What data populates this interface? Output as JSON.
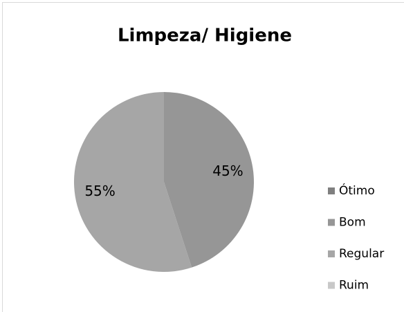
{
  "chart_data": {
    "type": "pie",
    "title": "Limpeza/ Higiene",
    "categories": [
      "Ótimo",
      "Bom",
      "Regular",
      "Ruim"
    ],
    "values": [
      0,
      45,
      55,
      0
    ],
    "value_labels": [
      null,
      "45%",
      "55%",
      null
    ],
    "colors": [
      "#7f7f7f",
      "#969696",
      "#a6a6a6",
      "#c8c8c8"
    ],
    "legend": "right"
  }
}
